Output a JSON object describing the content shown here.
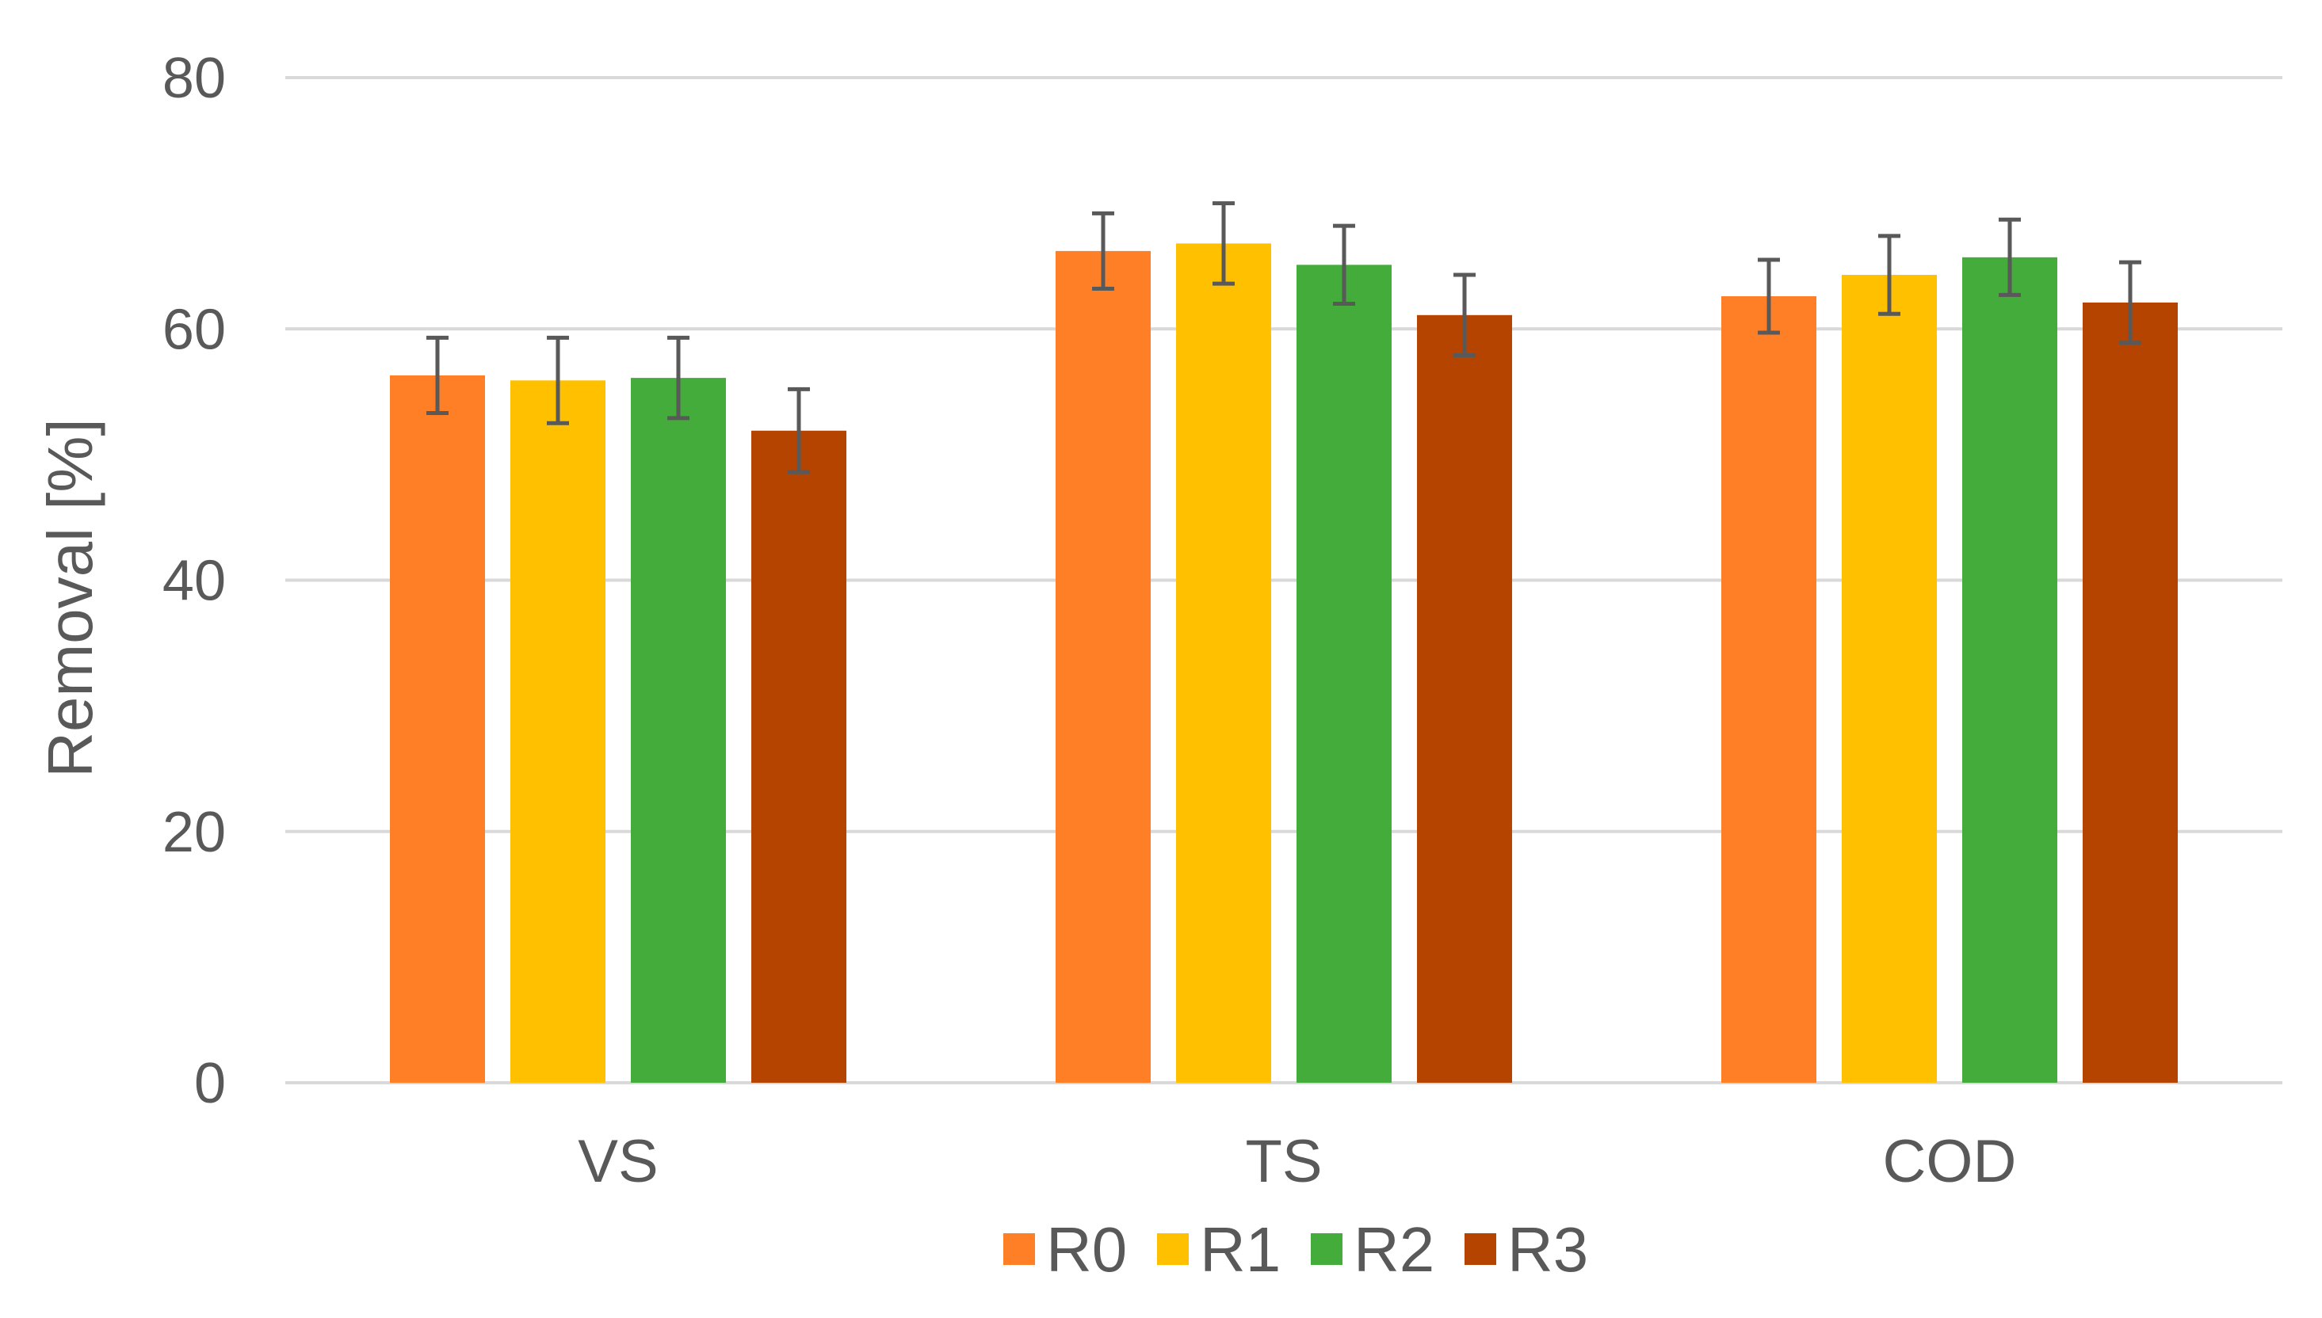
{
  "chart_data": {
    "type": "bar",
    "title": "",
    "xlabel": "",
    "ylabel": "Removal [%]",
    "ylim": [
      0,
      80
    ],
    "yticks": [
      0,
      20,
      40,
      60,
      80
    ],
    "grid": true,
    "legend_position": "bottom",
    "categories": [
      "VS",
      "TS",
      "COD"
    ],
    "series": [
      {
        "name": "R0",
        "color": "#FF7F27",
        "values": [
          56.3,
          66.2,
          62.6
        ],
        "errors": [
          3.0,
          3.0,
          2.9
        ]
      },
      {
        "name": "R1",
        "color": "#FFC000",
        "values": [
          55.9,
          66.8,
          64.3
        ],
        "errors": [
          3.4,
          3.2,
          3.1
        ]
      },
      {
        "name": "R2",
        "color": "#43AC3B",
        "values": [
          56.1,
          65.1,
          65.7
        ],
        "errors": [
          3.2,
          3.1,
          3.0
        ]
      },
      {
        "name": "R3",
        "color": "#B44400",
        "values": [
          51.9,
          61.1,
          62.1
        ],
        "errors": [
          3.3,
          3.2,
          3.2
        ]
      }
    ]
  }
}
